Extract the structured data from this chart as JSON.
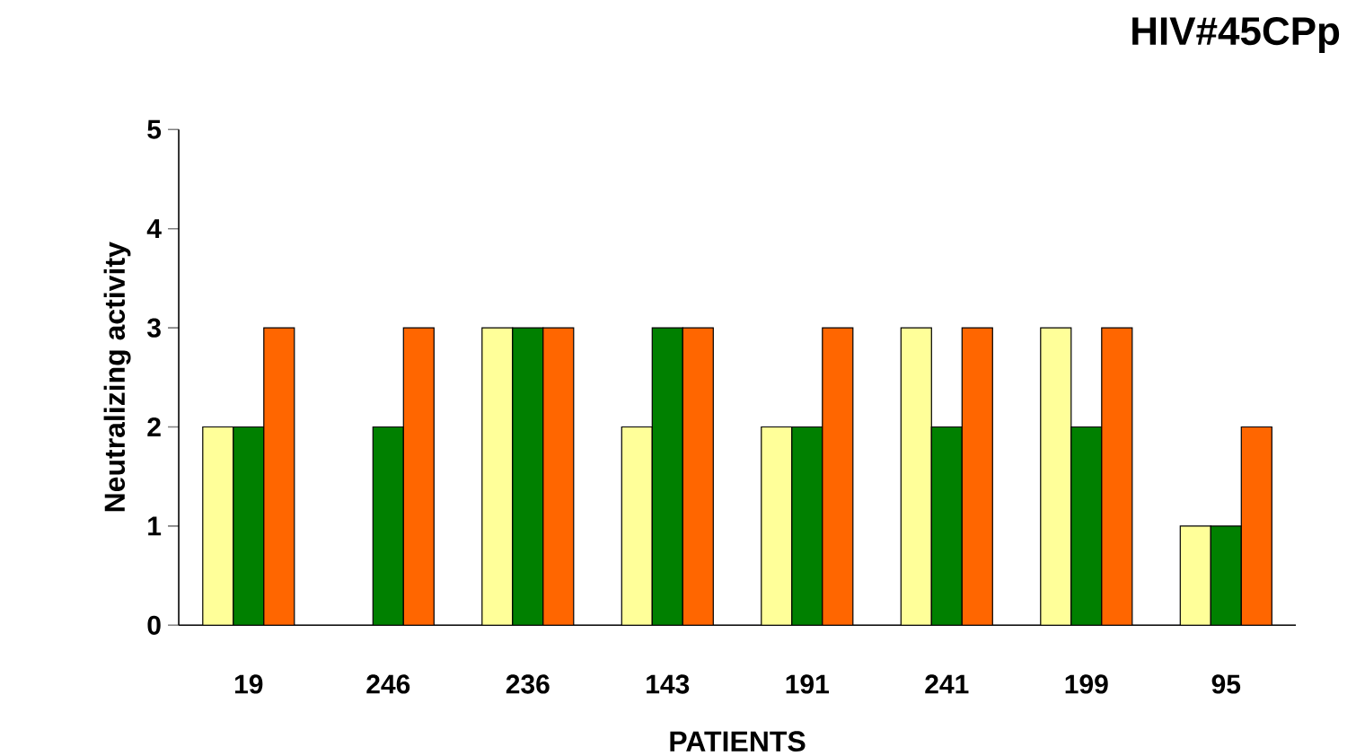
{
  "chart_data": {
    "type": "bar",
    "title": "HIV#45CPp",
    "xlabel": "PATIENTS",
    "ylabel": "Neutralizing activity",
    "categories": [
      "19",
      "246",
      "236",
      "143",
      "191",
      "241",
      "199",
      "95"
    ],
    "series": [
      {
        "color": "#ffff99",
        "values": [
          2,
          null,
          3,
          2,
          2,
          3,
          3,
          1
        ]
      },
      {
        "color": "#008000",
        "values": [
          2,
          2,
          3,
          3,
          2,
          2,
          2,
          1
        ]
      },
      {
        "color": "#ff6600",
        "values": [
          3,
          3,
          3,
          3,
          3,
          3,
          3,
          2
        ]
      }
    ],
    "ylim": [
      0,
      5
    ],
    "yticks": [
      0,
      1,
      2,
      3,
      4,
      5
    ],
    "grid": false
  }
}
